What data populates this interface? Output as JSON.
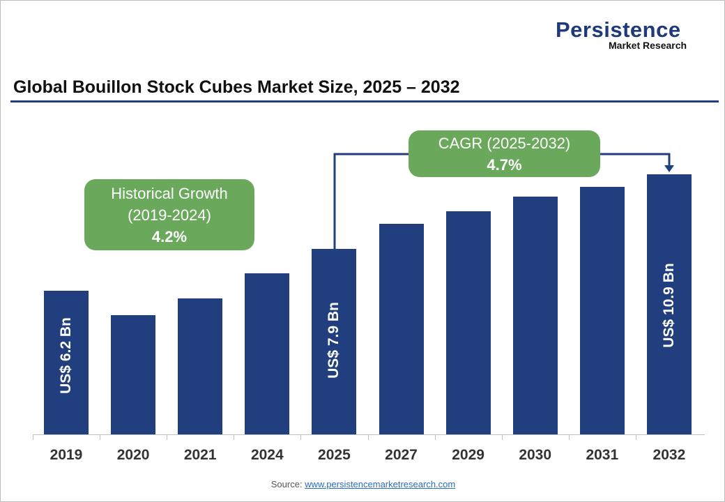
{
  "logo": {
    "line1": "Persistence",
    "line2": "Market Research"
  },
  "chart_data": {
    "type": "bar",
    "title": "Global Bouillon Stock Cubes Market Size, 2025 – 2032",
    "categories": [
      "2019",
      "2020",
      "2021",
      "2024",
      "2025",
      "2027",
      "2029",
      "2030",
      "2031",
      "2032"
    ],
    "values": [
      6.2,
      5.2,
      5.9,
      6.9,
      7.9,
      8.9,
      9.4,
      10.0,
      10.4,
      10.9
    ],
    "unit": "US$ Bn",
    "data_labels": {
      "2019": "US$ 6.2 Bn",
      "2025": "US$  7.9 Bn",
      "2032": "US$ 10.9 Bn"
    },
    "bar_color": "#213f7e",
    "annotations": {
      "historical": {
        "line1": "Historical Growth",
        "line2": "(2019-2024)",
        "value": "4.2%"
      },
      "cagr": {
        "line1": "CAGR (2025-2032)",
        "value": "4.7%"
      }
    },
    "grid": false
  },
  "source": {
    "label": "Source:",
    "link": "www.persistencemarketresearch.com"
  }
}
